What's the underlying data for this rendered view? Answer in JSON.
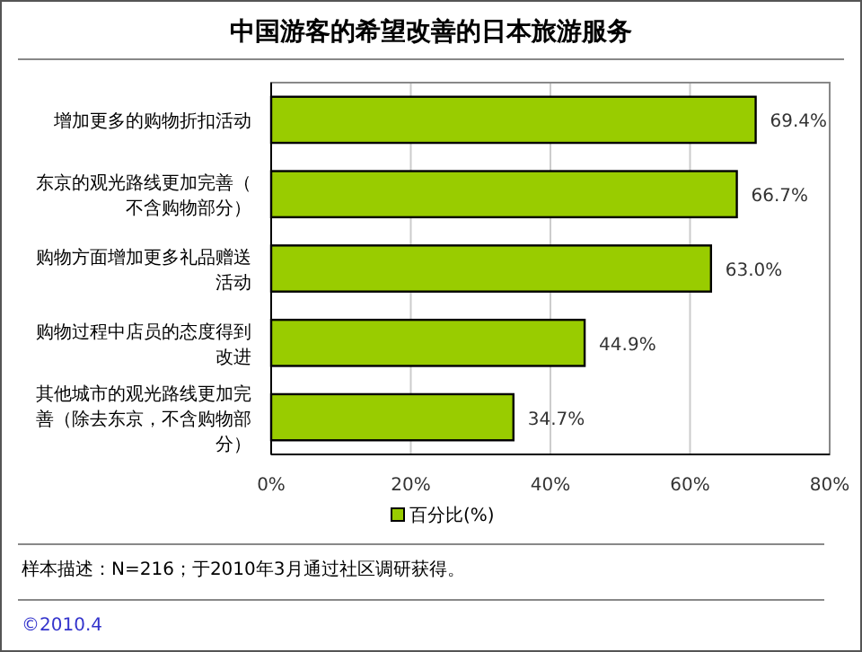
{
  "chart_data": {
    "type": "bar",
    "orientation": "horizontal",
    "title": "中国游客的希望改善的日本旅游服务",
    "categories": [
      "增加更多的购物折扣活动",
      "东京的观光路线更加完善（不含购物部分）",
      "购物方面增加更多礼品赠送活动",
      "购物过程中店员的态度得到改进",
      "其他城市的观光路线更加完善（除去东京，不含购物部分）"
    ],
    "series": [
      {
        "name": "百分比(%)",
        "color": "#99cc00",
        "values": [
          69.4,
          66.7,
          63.0,
          44.9,
          34.7
        ]
      }
    ],
    "value_labels": [
      "69.4%",
      "66.7%",
      "63.0%",
      "44.9%",
      "34.7%"
    ],
    "xlim": [
      0,
      80
    ],
    "xticks": [
      {
        "value": 0,
        "label": "0%"
      },
      {
        "value": 20,
        "label": "20%"
      },
      {
        "value": 40,
        "label": "40%"
      },
      {
        "value": 60,
        "label": "60%"
      },
      {
        "value": 80,
        "label": "80%"
      }
    ],
    "grid": "x",
    "legend": "bottom",
    "annotations": [
      "样本描述：N=216；于2010年3月通过社区调研获得。",
      "©2010.4"
    ]
  }
}
